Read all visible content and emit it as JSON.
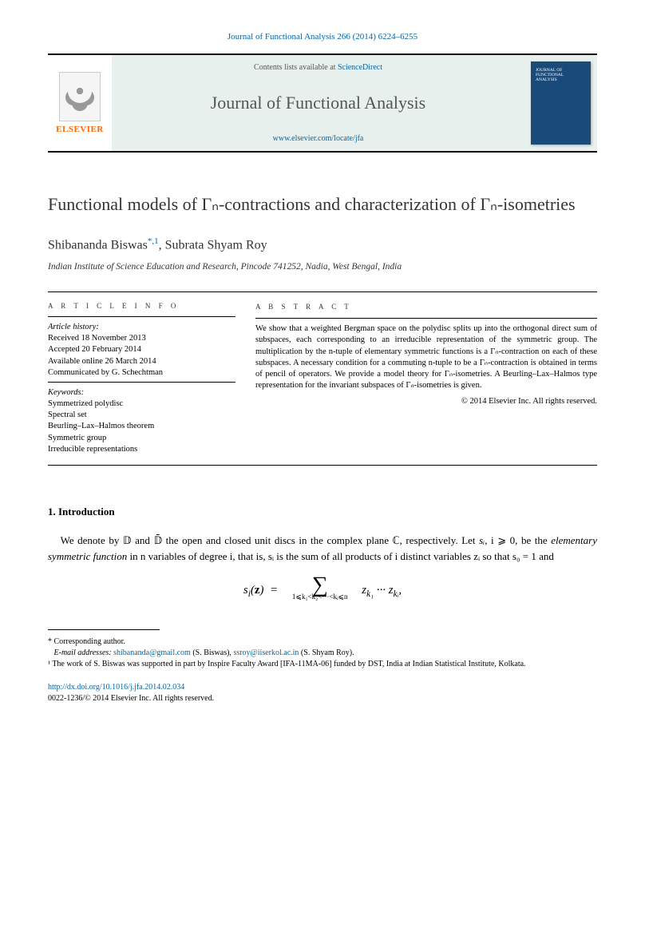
{
  "citation": "Journal of Functional Analysis 266 (2014) 6224–6255",
  "header": {
    "contents_prefix": "Contents lists available at ",
    "contents_link": "ScienceDirect",
    "journal_name": "Journal of Functional Analysis",
    "homepage": "www.elsevier.com/locate/jfa",
    "publisher": "ELSEVIER",
    "cover_label": "JOURNAL OF\nFUNCTIONAL\nANALYSIS"
  },
  "title": "Functional models of Γₙ-contractions and characterization of Γₙ-isometries",
  "authors_html": "Shibananda Biswas",
  "author_marks": "*,1",
  "author2": ", Subrata Shyam Roy",
  "affiliation": "Indian Institute of Science Education and Research, Pincode 741252, Nadia, West Bengal, India",
  "info": {
    "heading": "A R T I C L E   I N F O",
    "history_label": "Article history:",
    "received": "Received 18 November 2013",
    "accepted": "Accepted 20 February 2014",
    "online": "Available online 26 March 2014",
    "communicated": "Communicated by G. Schechtman",
    "keywords_label": "Keywords:",
    "kw1": "Symmetrized polydisc",
    "kw2": "Spectral set",
    "kw3": "Beurling–Lax–Halmos theorem",
    "kw4": "Symmetric group",
    "kw5": "Irreducible representations"
  },
  "abstract": {
    "heading": "A B S T R A C T",
    "text": "We show that a weighted Bergman space on the polydisc splits up into the orthogonal direct sum of subspaces, each corresponding to an irreducible representation of the symmetric group. The multiplication by the n-tuple of elementary symmetric functions is a Γₙ-contraction on each of these subspaces. A necessary condition for a commuting n-tuple to be a Γₙ-contraction is obtained in terms of pencil of operators. We provide a model theory for Γₙ-isometries. A Beurling–Lax–Halmos type representation for the invariant subspaces of Γₙ-isometries is given.",
    "copyright": "© 2014 Elsevier Inc. All rights reserved."
  },
  "section1": {
    "heading": "1. Introduction",
    "para1_a": "We denote by 𝔻 and 𝔻̄ the open and closed unit discs in the complex plane ℂ, respectively. Let ",
    "para1_b": "sᵢ",
    "para1_c": ", i ⩾ 0, be the ",
    "para1_d": "elementary symmetric function",
    "para1_e": " in n variables of degree i, that is, sᵢ is the sum of all products of i distinct variables zᵢ so that s₀ = 1 and",
    "equation_lhs": "sᵢ(z) =",
    "equation_sub": "1⩽k₁<k₂<···<kᵢ⩽n",
    "equation_rhs": "z_{k₁} ··· z_{kᵢ},"
  },
  "footnotes": {
    "corr": "* Corresponding author.",
    "email_label": "E-mail addresses:",
    "email1": "shibananda@gmail.com",
    "email1_who": " (S. Biswas), ",
    "email2": "ssroy@iiserkol.ac.in",
    "email2_who": " (S. Shyam Roy).",
    "fn1": "¹ The work of S. Biswas was supported in part by Inspire Faculty Award [IFA-11MA-06] funded by DST, India at Indian Statistical Institute, Kolkata."
  },
  "doi": {
    "url": "http://dx.doi.org/10.1016/j.jfa.2014.02.034",
    "issn_line": "0022-1236/© 2014 Elsevier Inc. All rights reserved."
  },
  "colors": {
    "link": "#0066aa",
    "header_bg": "#e8f0ee",
    "elsevier_orange": "#ff6600",
    "cover_blue": "#1a4a7a"
  }
}
